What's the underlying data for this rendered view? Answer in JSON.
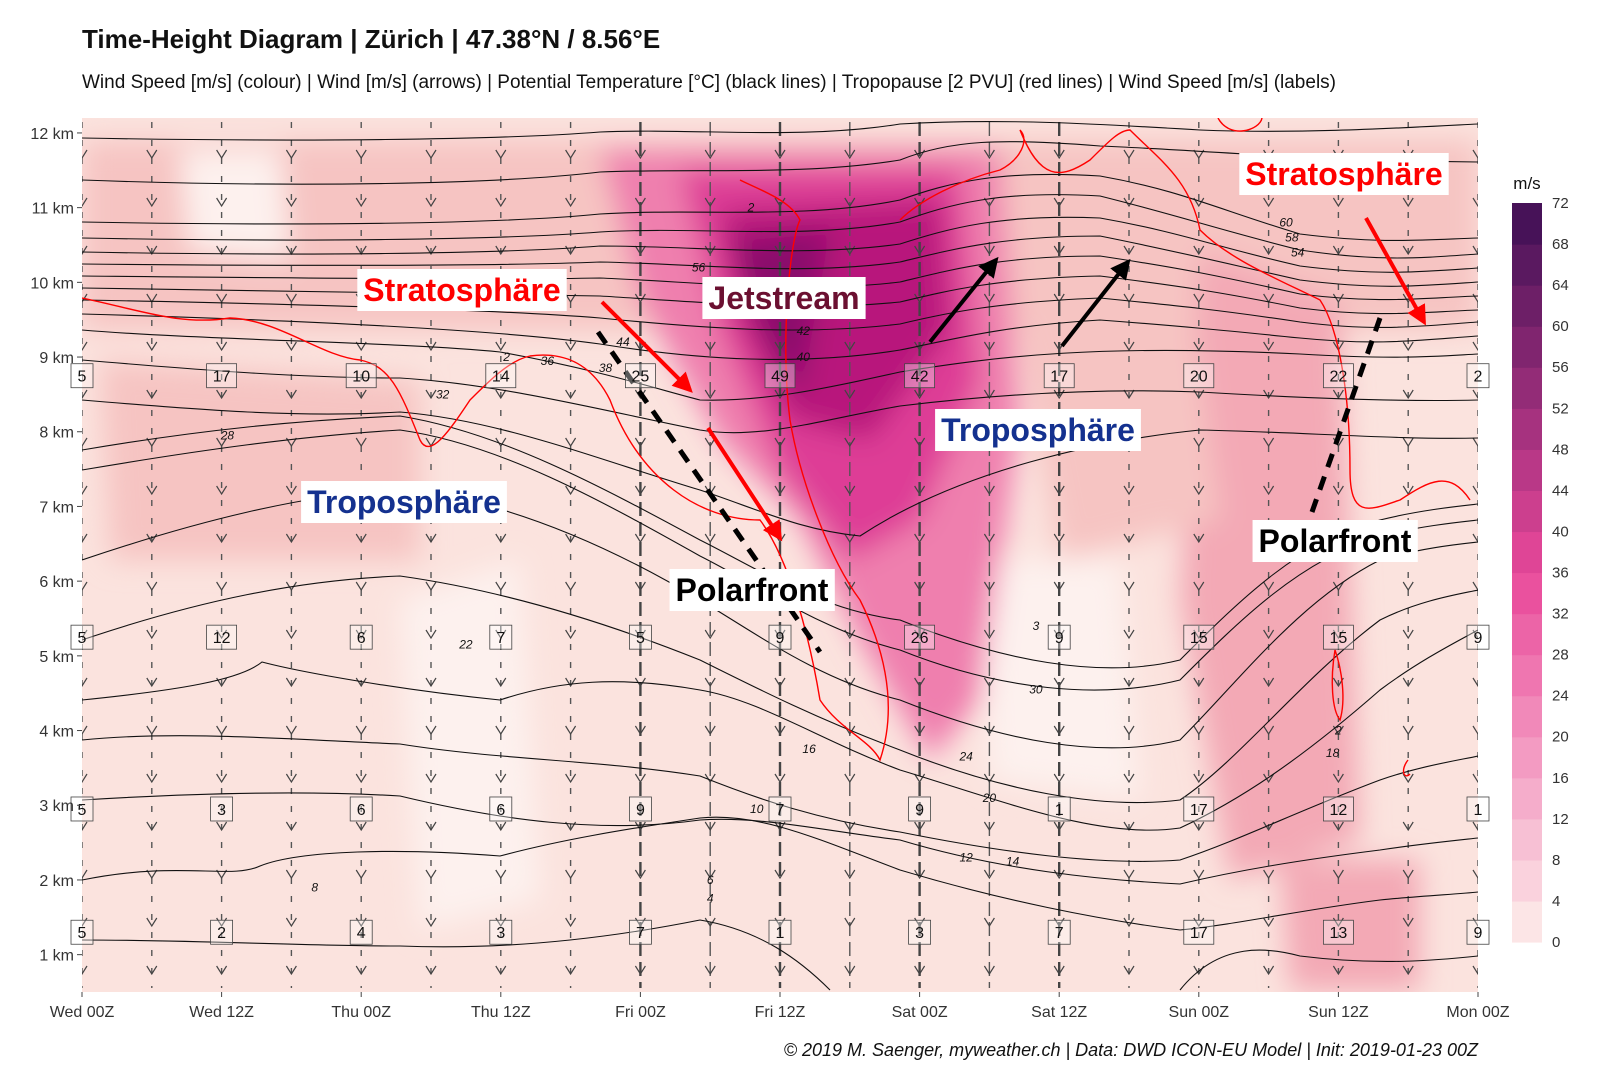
{
  "title": "Time-Height Diagram | Zürich | 47.38°N / 8.56°E",
  "subtitle": "Wind Speed [m/s] (colour) | Wind [m/s] (arrows) | Potential Temperature [°C] (black lines) | Tropopause [2 PVU] (red lines) | Wind Speed [m/s] (labels)",
  "credit": "© 2019 M. Saenger, myweather.ch | Data: DWD ICON-EU Model | Init: 2019-01-23 00Z",
  "colors": {
    "scale_low": "#fdeeea",
    "scale_mid": "#e9489a",
    "scale_high": "#3d0f54",
    "potential_temperature_lines": "#111111",
    "tropopause_lines": "#ff0000",
    "annotation_red": "#ff0000",
    "annotation_blue": "#14318f",
    "annotation_jet": "#6b1031"
  },
  "chart_data": {
    "type": "heatmap",
    "title": "Time-Height Diagram | Zürich | 47.38°N / 8.56°E",
    "x": {
      "ticks": [
        "Wed 00Z",
        "Wed 12Z",
        "Thu 00Z",
        "Thu 12Z",
        "Fri 00Z",
        "Fri 12Z",
        "Sat 00Z",
        "Sat 12Z",
        "Sun 00Z",
        "Sun 12Z",
        "Mon 00Z"
      ],
      "step_hours": 12
    },
    "y": {
      "ticks": [
        "1 km",
        "2 km",
        "3 km",
        "4 km",
        "5 km",
        "6 km",
        "7 km",
        "8 km",
        "9 km",
        "10 km",
        "11 km",
        "12 km"
      ],
      "range_km": [
        0.5,
        12.2
      ]
    },
    "colorbar": {
      "unit": "m/s",
      "ticks": [
        0,
        4,
        8,
        12,
        16,
        20,
        24,
        28,
        32,
        36,
        40,
        44,
        48,
        52,
        56,
        60,
        64,
        68,
        72
      ]
    },
    "wind_speed_labels": [
      {
        "time_h": 0,
        "height_km": 8.75,
        "text": "5"
      },
      {
        "time_h": 12,
        "height_km": 8.75,
        "text": "17"
      },
      {
        "time_h": 24,
        "height_km": 8.75,
        "text": "10"
      },
      {
        "time_h": 36,
        "height_km": 8.75,
        "text": "14"
      },
      {
        "time_h": 48,
        "height_km": 8.75,
        "text": "25"
      },
      {
        "time_h": 60,
        "height_km": 8.75,
        "text": "49"
      },
      {
        "time_h": 72,
        "height_km": 8.75,
        "text": "42"
      },
      {
        "time_h": 84,
        "height_km": 8.75,
        "text": "17"
      },
      {
        "time_h": 96,
        "height_km": 8.75,
        "text": "20"
      },
      {
        "time_h": 108,
        "height_km": 8.75,
        "text": "22"
      },
      {
        "time_h": 120,
        "height_km": 8.75,
        "text": "2"
      },
      {
        "time_h": 0,
        "height_km": 5.25,
        "text": "5"
      },
      {
        "time_h": 12,
        "height_km": 5.25,
        "text": "12"
      },
      {
        "time_h": 24,
        "height_km": 5.25,
        "text": "6"
      },
      {
        "time_h": 36,
        "height_km": 5.25,
        "text": "7"
      },
      {
        "time_h": 48,
        "height_km": 5.25,
        "text": "5"
      },
      {
        "time_h": 60,
        "height_km": 5.25,
        "text": "9"
      },
      {
        "time_h": 72,
        "height_km": 5.25,
        "text": "26"
      },
      {
        "time_h": 84,
        "height_km": 5.25,
        "text": "9"
      },
      {
        "time_h": 96,
        "height_km": 5.25,
        "text": "15"
      },
      {
        "time_h": 108,
        "height_km": 5.25,
        "text": "15"
      },
      {
        "time_h": 120,
        "height_km": 5.25,
        "text": "9"
      },
      {
        "time_h": 0,
        "height_km": 2.95,
        "text": "5"
      },
      {
        "time_h": 12,
        "height_km": 2.95,
        "text": "3"
      },
      {
        "time_h": 24,
        "height_km": 2.95,
        "text": "6"
      },
      {
        "time_h": 36,
        "height_km": 2.95,
        "text": "6"
      },
      {
        "time_h": 48,
        "height_km": 2.95,
        "text": "9"
      },
      {
        "time_h": 60,
        "height_km": 2.95,
        "text": "7"
      },
      {
        "time_h": 72,
        "height_km": 2.95,
        "text": "9"
      },
      {
        "time_h": 84,
        "height_km": 2.95,
        "text": "1"
      },
      {
        "time_h": 96,
        "height_km": 2.95,
        "text": "17"
      },
      {
        "time_h": 108,
        "height_km": 2.95,
        "text": "12"
      },
      {
        "time_h": 120,
        "height_km": 2.95,
        "text": "1"
      },
      {
        "time_h": 0,
        "height_km": 1.3,
        "text": "5"
      },
      {
        "time_h": 12,
        "height_km": 1.3,
        "text": "2"
      },
      {
        "time_h": 24,
        "height_km": 1.3,
        "text": "4"
      },
      {
        "time_h": 36,
        "height_km": 1.3,
        "text": "3"
      },
      {
        "time_h": 48,
        "height_km": 1.3,
        "text": "7"
      },
      {
        "time_h": 60,
        "height_km": 1.3,
        "text": "1"
      },
      {
        "time_h": 72,
        "height_km": 1.3,
        "text": "3"
      },
      {
        "time_h": 84,
        "height_km": 1.3,
        "text": "7"
      },
      {
        "time_h": 96,
        "height_km": 1.3,
        "text": "17"
      },
      {
        "time_h": 108,
        "height_km": 1.3,
        "text": "13"
      },
      {
        "time_h": 120,
        "height_km": 1.3,
        "text": "9"
      }
    ],
    "potential_temperature_labels": [
      {
        "time_h": 12.5,
        "height_km": 7.95,
        "text": "28"
      },
      {
        "time_h": 31,
        "height_km": 8.5,
        "text": "32"
      },
      {
        "time_h": 36.5,
        "height_km": 9.0,
        "text": "2"
      },
      {
        "time_h": 40,
        "height_km": 8.95,
        "text": "36"
      },
      {
        "time_h": 45,
        "height_km": 8.85,
        "text": "38"
      },
      {
        "time_h": 46.5,
        "height_km": 9.2,
        "text": "44"
      },
      {
        "time_h": 53,
        "height_km": 10.2,
        "text": "56"
      },
      {
        "time_h": 57.5,
        "height_km": 11.0,
        "text": "2"
      },
      {
        "time_h": 62,
        "height_km": 9.35,
        "text": "42"
      },
      {
        "time_h": 62,
        "height_km": 9.0,
        "text": "40"
      },
      {
        "time_h": 33,
        "height_km": 5.15,
        "text": "22"
      },
      {
        "time_h": 82,
        "height_km": 5.4,
        "text": "3"
      },
      {
        "time_h": 82,
        "height_km": 4.55,
        "text": "30"
      },
      {
        "time_h": 76,
        "height_km": 3.65,
        "text": "24"
      },
      {
        "time_h": 62.5,
        "height_km": 3.75,
        "text": "16"
      },
      {
        "time_h": 78,
        "height_km": 3.1,
        "text": "20"
      },
      {
        "time_h": 58,
        "height_km": 2.95,
        "text": "10"
      },
      {
        "time_h": 76,
        "height_km": 2.3,
        "text": "12"
      },
      {
        "time_h": 80,
        "height_km": 2.25,
        "text": "14"
      },
      {
        "time_h": 20,
        "height_km": 1.9,
        "text": "8"
      },
      {
        "time_h": 54,
        "height_km": 2.0,
        "text": "6"
      },
      {
        "time_h": 54,
        "height_km": 1.75,
        "text": "4"
      },
      {
        "time_h": 103.5,
        "height_km": 10.8,
        "text": "60"
      },
      {
        "time_h": 104,
        "height_km": 10.6,
        "text": "58"
      },
      {
        "time_h": 104.5,
        "height_km": 10.4,
        "text": "54"
      },
      {
        "time_h": 108,
        "height_km": 4.0,
        "text": "2"
      },
      {
        "time_h": 107.5,
        "height_km": 3.7,
        "text": "18"
      }
    ],
    "annotations": [
      {
        "text": "Stratosphäre",
        "color": "red"
      },
      {
        "text": "Jetstream",
        "color": "jet"
      },
      {
        "text": "Troposphäre",
        "color": "blue"
      },
      {
        "text": "Troposphäre",
        "color": "blue"
      },
      {
        "text": "Polarfront",
        "color": "black"
      },
      {
        "text": "Polarfront",
        "color": "black"
      },
      {
        "text": "Stratosphäre",
        "color": "red"
      }
    ]
  }
}
